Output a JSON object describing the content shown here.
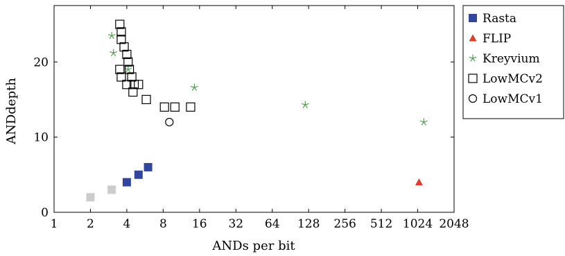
{
  "chart_data": {
    "type": "scatter",
    "xlabel": "ANDs per bit",
    "ylabel": "ANDdepth",
    "xscale": "log2",
    "xlim": [
      1,
      2048
    ],
    "ylim": [
      0,
      27.5
    ],
    "x_ticks": [
      1,
      2,
      4,
      8,
      16,
      32,
      64,
      128,
      256,
      512,
      1024,
      2048
    ],
    "x_tick_labels": [
      "1",
      "2",
      "4",
      "8",
      "16",
      "32",
      "64",
      "128",
      "256",
      "512",
      "1024",
      "2048"
    ],
    "y_ticks": [
      0,
      10,
      20
    ],
    "y_tick_labels": [
      "0",
      "10",
      "20"
    ],
    "grid": false,
    "legend_position": "outside-right-top",
    "series": [
      {
        "name": "Rasta",
        "marker": "filled-square",
        "color": "#3246a0",
        "points": [
          [
            4,
            4
          ],
          [
            5,
            5
          ],
          [
            6,
            6
          ]
        ]
      },
      {
        "name": "FLIP",
        "marker": "filled-triangle",
        "color": "#e03c28",
        "points": [
          [
            1050,
            4
          ]
        ]
      },
      {
        "name": "Kreyvium",
        "marker": "star",
        "color": "#3c9a3c",
        "points": [
          [
            3,
            23.5
          ],
          [
            3.1,
            21.2
          ],
          [
            4.1,
            19
          ],
          [
            14.5,
            16.6
          ],
          [
            120,
            14.3
          ],
          [
            1150,
            12
          ]
        ]
      },
      {
        "name": "LowMCv2",
        "marker": "open-square",
        "color": "#000000",
        "points": [
          [
            3.5,
            25
          ],
          [
            3.6,
            24
          ],
          [
            3.6,
            23
          ],
          [
            3.8,
            22
          ],
          [
            4.0,
            21
          ],
          [
            4.1,
            20
          ],
          [
            4.2,
            19
          ],
          [
            3.5,
            19
          ],
          [
            3.6,
            18
          ],
          [
            4.4,
            18
          ],
          [
            4.0,
            17
          ],
          [
            4.6,
            17
          ],
          [
            5.0,
            17
          ],
          [
            4.5,
            16
          ],
          [
            5.8,
            15
          ],
          [
            8.2,
            14
          ],
          [
            10,
            14
          ],
          [
            13.5,
            14
          ]
        ]
      },
      {
        "name": "LowMCv1",
        "marker": "open-circle",
        "color": "#000000",
        "points": [
          [
            9,
            12
          ]
        ]
      },
      {
        "name": "",
        "marker": "filled-square",
        "color": "#cccccc",
        "points": [
          [
            2,
            2
          ],
          [
            3,
            3
          ]
        ]
      }
    ]
  }
}
